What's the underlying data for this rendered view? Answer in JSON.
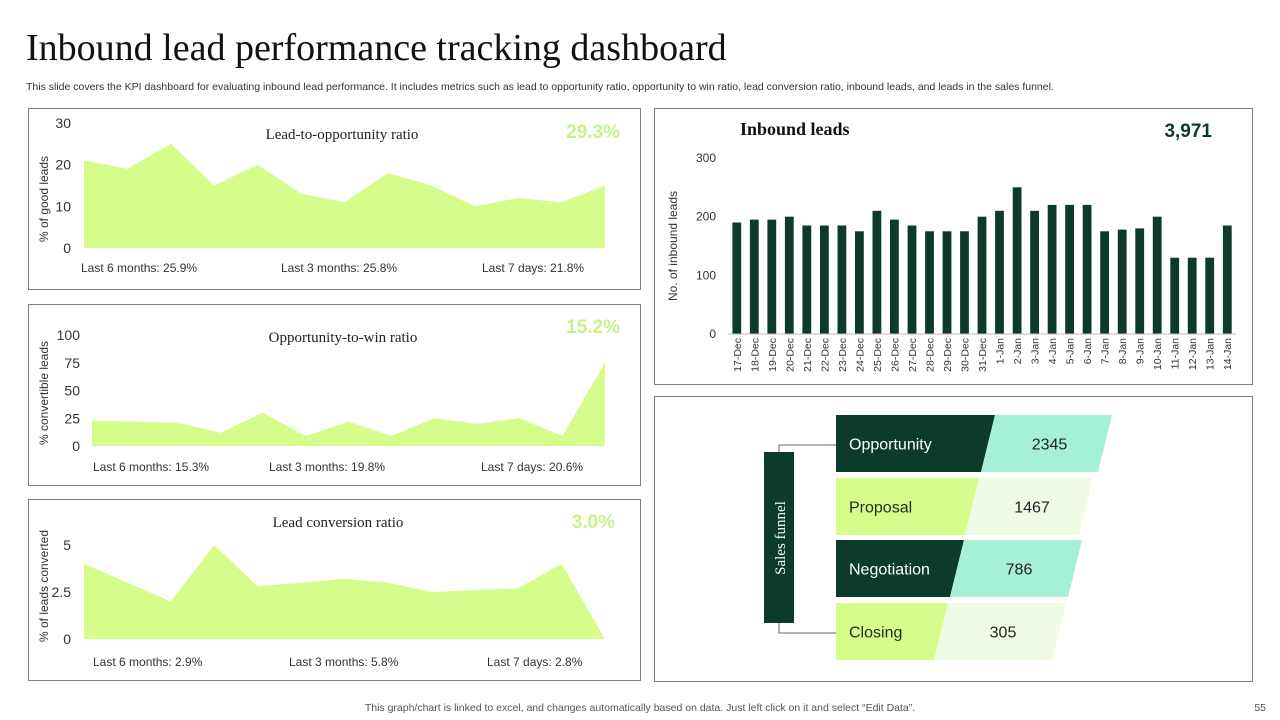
{
  "page": {
    "title": "Inbound lead performance tracking dashboard",
    "subtitle": "This slide covers the KPI dashboard for evaluating inbound lead performance. It includes metrics such as lead to opportunity ratio, opportunity to  win ratio, lead conversion ratio, inbound leads, and leads in the sales funnel.",
    "footer": "This graph/chart is linked to excel,  and changes automatically based on data. Just left click on it and select “Edit Data”.",
    "page_number": "55"
  },
  "colors": {
    "light_green": "#d5fd8c",
    "dark_green": "#0c3b2a",
    "mint": "#a6f0d8",
    "pale_green": "#f0fbe6",
    "kpi_green": "#c6f28c"
  },
  "panels": {
    "lead_to_opp": {
      "kpi": "29.3%",
      "stats": [
        "Last 6 months: 25.9%",
        "Last 3 months: 25.8%",
        "Last 7 days: 21.8%"
      ]
    },
    "opp_to_win": {
      "kpi": "15.2%",
      "stats": [
        "Last 6 months: 15.3%",
        "Last 3 months: 19.8%",
        "Last 7 days: 20.6%"
      ]
    },
    "lead_conversion": {
      "kpi": "3.0%",
      "stats": [
        "Last 6 months: 2.9%",
        "Last 3 months: 5.8%",
        "Last 7 days: 2.8%"
      ]
    },
    "inbound": {
      "kpi": "3,971"
    },
    "funnel": {
      "label": "Sales funnel"
    }
  },
  "chart_data": [
    {
      "id": "lead_to_opp",
      "type": "area",
      "title": "Lead-to-opportunity ratio",
      "ylabel": "% of good leads",
      "yticks": [
        "0",
        "10",
        "20",
        "30"
      ],
      "ylim": [
        0,
        30
      ],
      "values": [
        21,
        19,
        25,
        15,
        20,
        13,
        11,
        18,
        15,
        10,
        12,
        11,
        15
      ]
    },
    {
      "id": "opp_to_win",
      "type": "area",
      "title": "Opportunity-to-win  ratio",
      "ylabel": "%  convertible leads",
      "yticks": [
        "0",
        "25",
        "50",
        "75",
        "100"
      ],
      "ylim": [
        0,
        100
      ],
      "values": [
        23,
        22,
        21,
        12,
        30,
        9,
        22,
        9,
        25,
        20,
        25,
        9,
        75
      ]
    },
    {
      "id": "lead_conversion",
      "type": "area",
      "title": "Lead conversion ratio",
      "ylabel": "% of leads converted",
      "yticks": [
        "0",
        "2.5",
        "5"
      ],
      "ylim": [
        0,
        5
      ],
      "values": [
        4,
        3,
        2,
        5,
        2.8,
        3,
        3.2,
        3,
        2.5,
        2.6,
        2.7,
        4,
        0
      ]
    },
    {
      "id": "inbound_leads",
      "type": "bar",
      "title": "Inbound leads",
      "ylabel": "No. of inbound leads",
      "yticks": [
        "0",
        "100",
        "200",
        "300"
      ],
      "ylim": [
        0,
        300
      ],
      "categories": [
        "17-Dec",
        "18-Dec",
        "19-Dec",
        "20-Dec",
        "21-Dec",
        "22-Dec",
        "23-Dec",
        "24-Dec",
        "25-Dec",
        "26-Dec",
        "27-Dec",
        "28-Dec",
        "29-Dec",
        "30-Dec",
        "31-Dec",
        "1-Jan",
        "2-Jan",
        "3-Jan",
        "4-Jan",
        "5-Jan",
        "6-Jan",
        "7-Jan",
        "8-Jan",
        "9-Jan",
        "10-Jan",
        "11-Jan",
        "12-Jan",
        "13-Jan",
        "14-Jan"
      ],
      "values": [
        190,
        195,
        195,
        200,
        185,
        185,
        185,
        175,
        210,
        195,
        185,
        175,
        175,
        175,
        200,
        210,
        250,
        210,
        220,
        220,
        220,
        175,
        178,
        180,
        200,
        130,
        130,
        130,
        185
      ]
    },
    {
      "id": "sales_funnel",
      "type": "table",
      "stages": [
        {
          "label": "Opportunity",
          "value": "2345"
        },
        {
          "label": "Proposal",
          "value": "1467"
        },
        {
          "label": "Negotiation",
          "value": "786"
        },
        {
          "label": "Closing",
          "value": "305"
        }
      ]
    }
  ]
}
